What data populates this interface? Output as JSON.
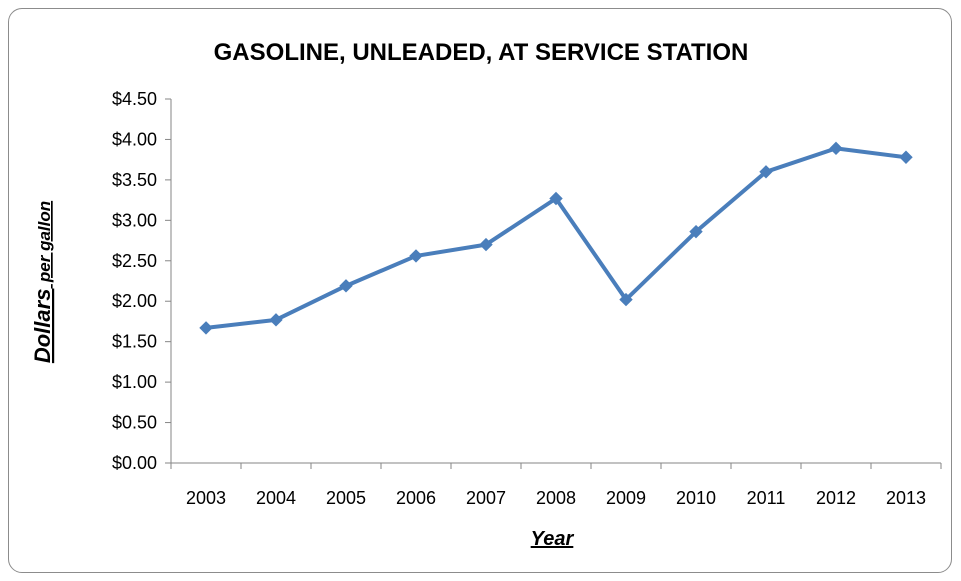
{
  "chart_data": {
    "type": "line",
    "title": "GASOLINE, UNLEADED, AT SERVICE STATION",
    "xlabel": "Year",
    "ylabel_main": "Dollars",
    "ylabel_suffix": "per gallon",
    "categories": [
      "2003",
      "2004",
      "2005",
      "2006",
      "2007",
      "2008",
      "2009",
      "2010",
      "2011",
      "2012",
      "2013"
    ],
    "series": [
      {
        "values": [
          1.67,
          1.77,
          2.19,
          2.56,
          2.7,
          3.27,
          2.02,
          2.86,
          3.6,
          3.89,
          3.78
        ],
        "color": "#4a7ebb",
        "marker": "diamond"
      }
    ],
    "y_ticks": [
      0,
      0.5,
      1.0,
      1.5,
      2.0,
      2.5,
      3.0,
      3.5,
      4.0,
      4.5
    ],
    "y_tick_labels": [
      "$0.00",
      "$0.50",
      "$1.00",
      "$1.50",
      "$2.00",
      "$2.50",
      "$3.00",
      "$3.50",
      "$4.00",
      "$4.50"
    ],
    "ylim": [
      0,
      4.5
    ],
    "grid": false,
    "legend": "none"
  }
}
